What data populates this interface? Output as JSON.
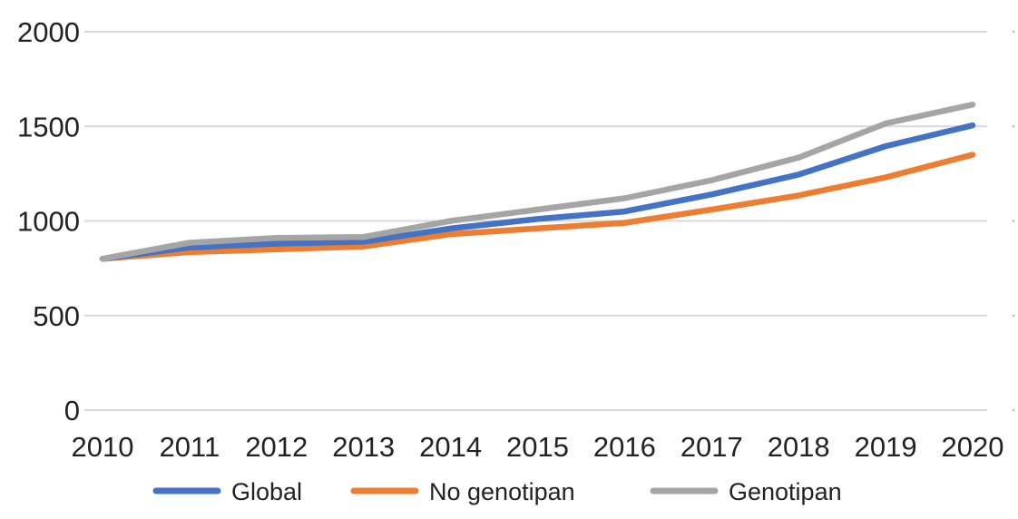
{
  "chart_data": {
    "type": "line",
    "title": "",
    "xlabel": "",
    "ylabel": "",
    "categories": [
      "2010",
      "2011",
      "2012",
      "2013",
      "2014",
      "2015",
      "2016",
      "2017",
      "2018",
      "2019",
      "2020"
    ],
    "ylim": [
      0,
      2000
    ],
    "yticks": [
      0,
      500,
      1000,
      1500,
      2000
    ],
    "grid": true,
    "legend_position": "bottom",
    "series": [
      {
        "name": "Global",
        "color": "#4472c4",
        "values": [
          800,
          860,
          880,
          890,
          960,
          1010,
          1050,
          1140,
          1245,
          1395,
          1505
        ]
      },
      {
        "name": "No genotipan",
        "color": "#ed7d31",
        "values": [
          800,
          835,
          850,
          865,
          930,
          960,
          990,
          1060,
          1135,
          1230,
          1350
        ]
      },
      {
        "name": "Genotipan",
        "color": "#a5a5a5",
        "values": [
          800,
          885,
          910,
          915,
          1000,
          1060,
          1120,
          1215,
          1335,
          1515,
          1615
        ]
      }
    ]
  }
}
